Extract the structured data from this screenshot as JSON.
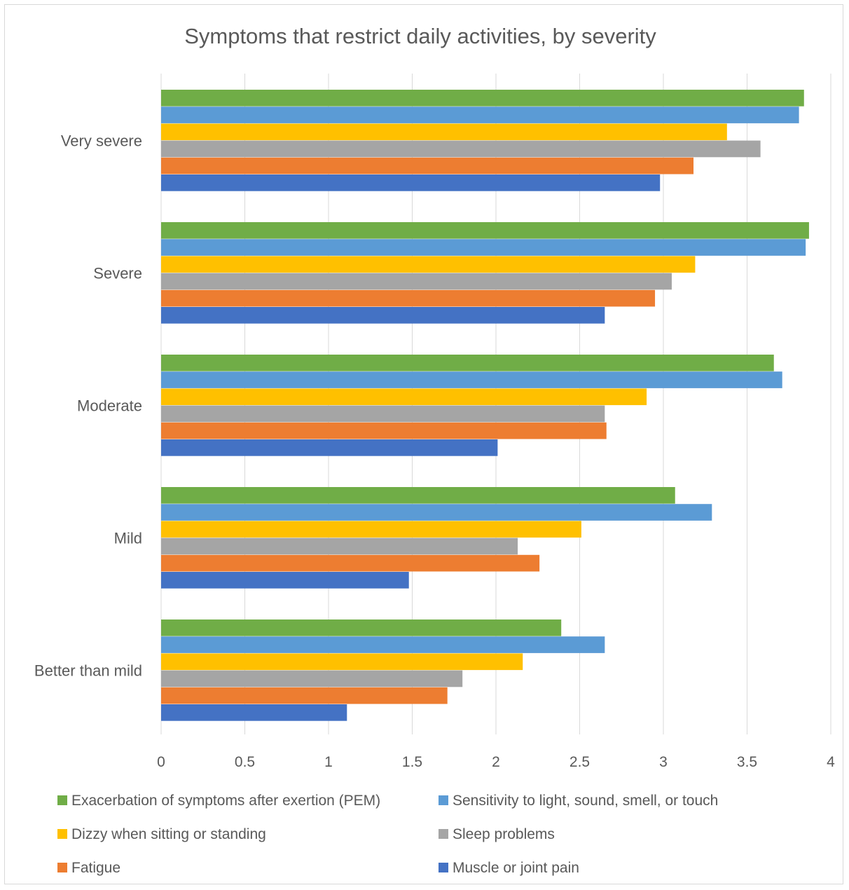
{
  "chart_data": {
    "type": "bar",
    "orientation": "horizontal",
    "title": "Symptoms that restrict daily activities, by severity",
    "xlabel": "",
    "ylabel": "",
    "xlim": [
      0,
      4
    ],
    "x_ticks": [
      "0",
      "0.5",
      "1",
      "1.5",
      "2",
      "2.5",
      "3",
      "3.5",
      "4"
    ],
    "grid": true,
    "legend_position": "bottom",
    "categories": [
      "Very severe",
      "Severe",
      "Moderate",
      "Mild",
      "Better than mild"
    ],
    "series": [
      {
        "name": "Exacerbation of symptoms after exertion (PEM)",
        "color": "#70ad47",
        "values": [
          3.84,
          3.87,
          3.66,
          3.07,
          2.39
        ]
      },
      {
        "name": "Sensitivity to light, sound, smell, or touch",
        "color": "#5b9bd5",
        "values": [
          3.81,
          3.85,
          3.71,
          3.29,
          2.65
        ]
      },
      {
        "name": "Dizzy when sitting or standing",
        "color": "#ffc000",
        "values": [
          3.38,
          3.19,
          2.9,
          2.51,
          2.16
        ]
      },
      {
        "name": "Sleep problems",
        "color": "#a5a5a5",
        "values": [
          3.58,
          3.05,
          2.65,
          2.13,
          1.8
        ]
      },
      {
        "name": "Fatigue",
        "color": "#ed7d31",
        "values": [
          3.18,
          2.95,
          2.66,
          2.26,
          1.71
        ]
      },
      {
        "name": "Muscle or joint pain",
        "color": "#4472c4",
        "values": [
          2.98,
          2.65,
          2.01,
          1.48,
          1.11
        ]
      }
    ]
  }
}
